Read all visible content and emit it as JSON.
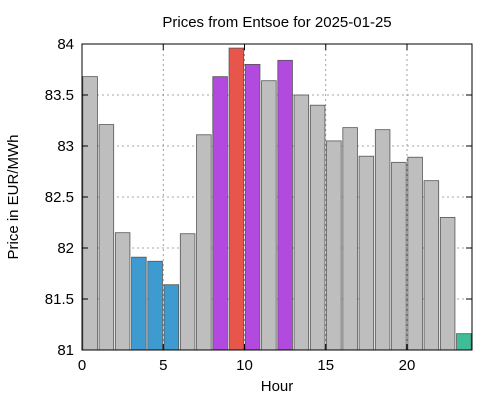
{
  "chart_data": {
    "type": "bar",
    "title": "Prices from Entsoe for 2025-01-25",
    "xlabel": "Hour",
    "ylabel": "Price in EUR/MWh",
    "xlim": [
      0,
      24
    ],
    "ylim": [
      81,
      84
    ],
    "xticks": [
      0,
      5,
      10,
      15,
      20
    ],
    "yticks": [
      81,
      81.5,
      82,
      82.5,
      83,
      83.5,
      84
    ],
    "ytick_labels": [
      "81",
      "81.5",
      "82",
      "82.5",
      "83",
      "83.5",
      "84"
    ],
    "grid": true,
    "x": [
      0.5,
      1.5,
      2.5,
      3.5,
      4.5,
      5.5,
      6.5,
      7.5,
      8.5,
      9.5,
      10.5,
      11.5,
      12.5,
      13.5,
      14.5,
      15.5,
      16.5,
      17.5,
      18.5,
      19.5,
      20.5,
      21.5,
      22.5,
      23.5
    ],
    "values": [
      83.68,
      83.21,
      82.15,
      81.91,
      81.87,
      81.64,
      82.14,
      83.11,
      83.68,
      83.96,
      83.8,
      83.64,
      83.84,
      83.5,
      83.4,
      83.05,
      83.18,
      82.9,
      83.16,
      82.84,
      82.89,
      82.66,
      82.3,
      81.16
    ],
    "colors": [
      "#bebebe",
      "#bebebe",
      "#bebebe",
      "#3d9bd0",
      "#3d9bd0",
      "#3d9bd0",
      "#bebebe",
      "#bebebe",
      "#b24ae0",
      "#e8554a",
      "#b24ae0",
      "#bebebe",
      "#b24ae0",
      "#bebebe",
      "#bebebe",
      "#bebebe",
      "#bebebe",
      "#bebebe",
      "#bebebe",
      "#bebebe",
      "#bebebe",
      "#bebebe",
      "#bebebe",
      "#3ebd96"
    ]
  }
}
